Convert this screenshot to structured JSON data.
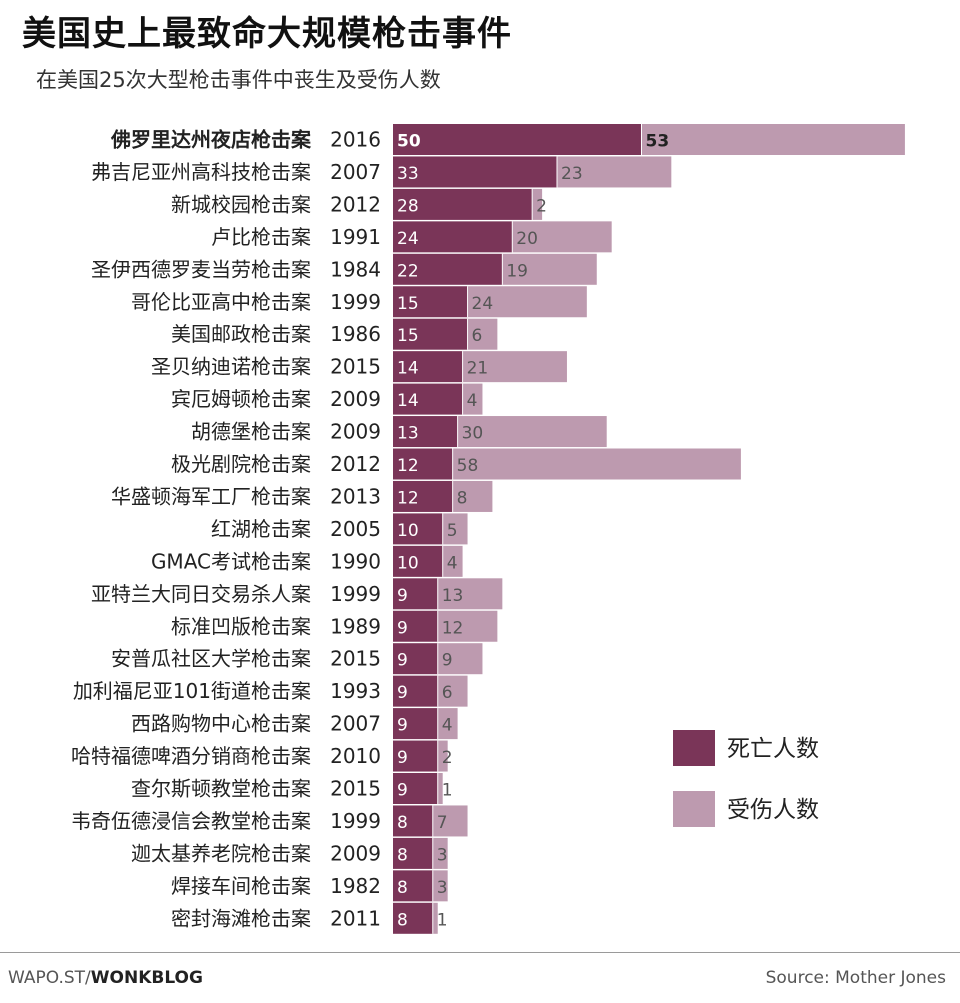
{
  "header": {
    "title": "美国史上最致命大规模枪击事件",
    "subtitle": "在美国25次大型枪击事件中丧生及受伤人数"
  },
  "footer": {
    "brand_prefix": "WAPO.ST/",
    "brand_name": "WONKBLOG",
    "source": "Source: Mother Jones"
  },
  "colors": {
    "deaths": "#7a3558",
    "injuries": "#bd9aaf",
    "text_on_bar": "#ffffff",
    "text_on_light": "#555555"
  },
  "chart_data": {
    "type": "bar",
    "orientation": "horizontal",
    "stacked": true,
    "categories": [
      "佛罗里达州夜店枪击案",
      "弗吉尼亚州高科技枪击案",
      "新城校园枪击案",
      "卢比枪击案",
      "圣伊西德罗麦当劳枪击案",
      "哥伦比亚高中枪击案",
      "美国邮政枪击案",
      "圣贝纳迪诺枪击案",
      "宾厄姆顿枪击案",
      "胡德堡枪击案",
      "极光剧院枪击案",
      "华盛顿海军工厂枪击案",
      "红湖枪击案",
      "GMAC考试枪击案",
      "亚特兰大同日交易杀人案",
      "标准凹版枪击案",
      "安普瓜社区大学枪击案",
      "加利福尼亚101街道枪击案",
      "西路购物中心枪击案",
      "哈特福德啤酒分销商枪击案",
      "查尔斯顿教堂枪击案",
      "韦奇伍德浸信会教堂枪击案",
      "迦太基养老院枪击案",
      "焊接车间枪击案",
      "密封海滩枪击案"
    ],
    "years": [
      "2016",
      "2007",
      "2012",
      "1991",
      "1984",
      "1999",
      "1986",
      "2015",
      "2009",
      "2009",
      "2012",
      "2013",
      "2005",
      "1990",
      "1999",
      "1989",
      "2015",
      "1993",
      "2007",
      "2010",
      "2015",
      "1999",
      "2009",
      "1982",
      "2011"
    ],
    "series": [
      {
        "name": "死亡人数",
        "values": [
          50,
          33,
          28,
          24,
          22,
          15,
          15,
          14,
          14,
          13,
          12,
          12,
          10,
          10,
          9,
          9,
          9,
          9,
          9,
          9,
          9,
          8,
          8,
          8,
          8
        ]
      },
      {
        "name": "受伤人数",
        "values": [
          53,
          23,
          2,
          20,
          19,
          24,
          6,
          21,
          4,
          30,
          58,
          8,
          5,
          4,
          13,
          12,
          9,
          6,
          4,
          2,
          1,
          7,
          3,
          3,
          1
        ]
      }
    ],
    "highlight_index": 0,
    "legend_position": "right",
    "grid": false
  }
}
